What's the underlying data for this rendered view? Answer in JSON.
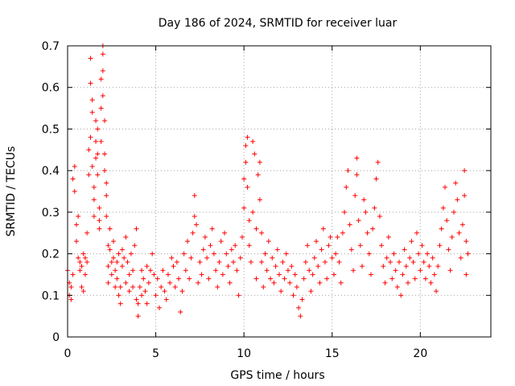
{
  "chart_data": {
    "type": "scatter",
    "title": "Day 186 of 2024, SRMTID for receiver luar",
    "xlabel": "GPS time / hours",
    "ylabel": "SRMTID / TECUs",
    "xlim": [
      0,
      24
    ],
    "ylim": [
      0,
      0.7
    ],
    "xticks": [
      "0",
      "5",
      "10",
      "15",
      "20"
    ],
    "yticks": [
      "0",
      "0.1",
      "0.2",
      "0.3",
      "0.4",
      "0.5",
      "0.6",
      "0.7"
    ],
    "grid": true,
    "marker": "+",
    "series": [
      {
        "name": "SRMTID",
        "color": "#ff0000",
        "points": [
          [
            0.0,
            0.16
          ],
          [
            0.1,
            0.13
          ],
          [
            0.1,
            0.1
          ],
          [
            0.2,
            0.09
          ],
          [
            0.2,
            0.12
          ],
          [
            0.3,
            0.15
          ],
          [
            0.3,
            0.38
          ],
          [
            0.4,
            0.41
          ],
          [
            0.4,
            0.35
          ],
          [
            0.5,
            0.27
          ],
          [
            0.5,
            0.23
          ],
          [
            0.6,
            0.19
          ],
          [
            0.6,
            0.29
          ],
          [
            0.7,
            0.18
          ],
          [
            0.7,
            0.16
          ],
          [
            0.8,
            0.12
          ],
          [
            0.8,
            0.17
          ],
          [
            0.9,
            0.2
          ],
          [
            0.9,
            0.11
          ],
          [
            1.0,
            0.15
          ],
          [
            1.0,
            0.19
          ],
          [
            1.1,
            0.18
          ],
          [
            1.1,
            0.25
          ],
          [
            1.2,
            0.39
          ],
          [
            1.2,
            0.45
          ],
          [
            1.3,
            0.48
          ],
          [
            1.3,
            0.67
          ],
          [
            1.3,
            0.61
          ],
          [
            1.4,
            0.57
          ],
          [
            1.4,
            0.54
          ],
          [
            1.4,
            0.41
          ],
          [
            1.5,
            0.33
          ],
          [
            1.5,
            0.29
          ],
          [
            1.5,
            0.36
          ],
          [
            1.6,
            0.43
          ],
          [
            1.6,
            0.52
          ],
          [
            1.6,
            0.47
          ],
          [
            1.7,
            0.5
          ],
          [
            1.7,
            0.44
          ],
          [
            1.7,
            0.39
          ],
          [
            1.8,
            0.28
          ],
          [
            1.8,
            0.31
          ],
          [
            1.8,
            0.26
          ],
          [
            1.9,
            0.47
          ],
          [
            1.9,
            0.55
          ],
          [
            1.9,
            0.62
          ],
          [
            2.0,
            0.7
          ],
          [
            2.0,
            0.68
          ],
          [
            2.0,
            0.64
          ],
          [
            2.0,
            0.58
          ],
          [
            2.1,
            0.52
          ],
          [
            2.1,
            0.44
          ],
          [
            2.1,
            0.4
          ],
          [
            2.2,
            0.34
          ],
          [
            2.2,
            0.29
          ],
          [
            2.2,
            0.37
          ],
          [
            2.3,
            0.22
          ],
          [
            2.3,
            0.17
          ],
          [
            2.3,
            0.13
          ],
          [
            2.4,
            0.26
          ],
          [
            2.4,
            0.21
          ],
          [
            2.5,
            0.18
          ],
          [
            2.5,
            0.15
          ],
          [
            2.6,
            0.19
          ],
          [
            2.6,
            0.23
          ],
          [
            2.7,
            0.16
          ],
          [
            2.7,
            0.12
          ],
          [
            2.8,
            0.18
          ],
          [
            2.8,
            0.14
          ],
          [
            2.9,
            0.2
          ],
          [
            2.9,
            0.1
          ],
          [
            3.0,
            0.12
          ],
          [
            3.0,
            0.08
          ],
          [
            3.1,
            0.17
          ],
          [
            3.1,
            0.21
          ],
          [
            3.2,
            0.19
          ],
          [
            3.3,
            0.13
          ],
          [
            3.3,
            0.24
          ],
          [
            3.4,
            0.18
          ],
          [
            3.5,
            0.15
          ],
          [
            3.5,
            0.11
          ],
          [
            3.6,
            0.2
          ],
          [
            3.7,
            0.16
          ],
          [
            3.7,
            0.12
          ],
          [
            3.8,
            0.22
          ],
          [
            3.9,
            0.26
          ],
          [
            3.9,
            0.09
          ],
          [
            4.0,
            0.05
          ],
          [
            4.0,
            0.08
          ],
          [
            4.1,
            0.12
          ],
          [
            4.2,
            0.16
          ],
          [
            4.2,
            0.1
          ],
          [
            4.3,
            0.14
          ],
          [
            4.4,
            0.11
          ],
          [
            4.5,
            0.17
          ],
          [
            4.5,
            0.08
          ],
          [
            4.6,
            0.13
          ],
          [
            4.7,
            0.16
          ],
          [
            4.8,
            0.2
          ],
          [
            4.9,
            0.15
          ],
          [
            5.0,
            0.1
          ],
          [
            5.1,
            0.14
          ],
          [
            5.2,
            0.07
          ],
          [
            5.3,
            0.12
          ],
          [
            5.4,
            0.16
          ],
          [
            5.5,
            0.11
          ],
          [
            5.6,
            0.09
          ],
          [
            5.7,
            0.15
          ],
          [
            5.8,
            0.13
          ],
          [
            5.9,
            0.19
          ],
          [
            6.0,
            0.17
          ],
          [
            6.1,
            0.12
          ],
          [
            6.2,
            0.18
          ],
          [
            6.3,
            0.14
          ],
          [
            6.4,
            0.06
          ],
          [
            6.5,
            0.11
          ],
          [
            6.6,
            0.2
          ],
          [
            6.7,
            0.16
          ],
          [
            6.8,
            0.23
          ],
          [
            6.9,
            0.14
          ],
          [
            7.0,
            0.19
          ],
          [
            7.1,
            0.25
          ],
          [
            7.2,
            0.29
          ],
          [
            7.2,
            0.34
          ],
          [
            7.3,
            0.27
          ],
          [
            7.4,
            0.13
          ],
          [
            7.5,
            0.18
          ],
          [
            7.6,
            0.15
          ],
          [
            7.7,
            0.21
          ],
          [
            7.8,
            0.24
          ],
          [
            7.9,
            0.19
          ],
          [
            8.0,
            0.14
          ],
          [
            8.1,
            0.22
          ],
          [
            8.2,
            0.26
          ],
          [
            8.3,
            0.2
          ],
          [
            8.4,
            0.16
          ],
          [
            8.5,
            0.12
          ],
          [
            8.6,
            0.18
          ],
          [
            8.7,
            0.23
          ],
          [
            8.8,
            0.15
          ],
          [
            8.9,
            0.25
          ],
          [
            9.0,
            0.2
          ],
          [
            9.1,
            0.17
          ],
          [
            9.2,
            0.13
          ],
          [
            9.3,
            0.21
          ],
          [
            9.4,
            0.18
          ],
          [
            9.5,
            0.22
          ],
          [
            9.6,
            0.16
          ],
          [
            9.7,
            0.1
          ],
          [
            9.8,
            0.19
          ],
          [
            9.9,
            0.24
          ],
          [
            10.0,
            0.31
          ],
          [
            10.0,
            0.38
          ],
          [
            10.1,
            0.46
          ],
          [
            10.1,
            0.42
          ],
          [
            10.2,
            0.48
          ],
          [
            10.2,
            0.36
          ],
          [
            10.3,
            0.28
          ],
          [
            10.3,
            0.22
          ],
          [
            10.4,
            0.18
          ],
          [
            10.5,
            0.3
          ],
          [
            10.5,
            0.47
          ],
          [
            10.6,
            0.44
          ],
          [
            10.7,
            0.26
          ],
          [
            10.7,
            0.14
          ],
          [
            10.8,
            0.39
          ],
          [
            10.9,
            0.42
          ],
          [
            10.9,
            0.33
          ],
          [
            11.0,
            0.25
          ],
          [
            11.0,
            0.18
          ],
          [
            11.1,
            0.12
          ],
          [
            11.2,
            0.2
          ],
          [
            11.3,
            0.16
          ],
          [
            11.4,
            0.23
          ],
          [
            11.5,
            0.14
          ],
          [
            11.6,
            0.19
          ],
          [
            11.7,
            0.13
          ],
          [
            11.8,
            0.17
          ],
          [
            11.9,
            0.21
          ],
          [
            12.0,
            0.15
          ],
          [
            12.1,
            0.11
          ],
          [
            12.2,
            0.18
          ],
          [
            12.3,
            0.14
          ],
          [
            12.4,
            0.2
          ],
          [
            12.5,
            0.16
          ],
          [
            12.6,
            0.13
          ],
          [
            12.7,
            0.17
          ],
          [
            12.8,
            0.1
          ],
          [
            12.9,
            0.15
          ],
          [
            13.0,
            0.12
          ],
          [
            13.1,
            0.07
          ],
          [
            13.2,
            0.05
          ],
          [
            13.3,
            0.09
          ],
          [
            13.4,
            0.14
          ],
          [
            13.5,
            0.18
          ],
          [
            13.6,
            0.22
          ],
          [
            13.7,
            0.16
          ],
          [
            13.8,
            0.11
          ],
          [
            13.9,
            0.15
          ],
          [
            14.0,
            0.19
          ],
          [
            14.1,
            0.23
          ],
          [
            14.2,
            0.17
          ],
          [
            14.3,
            0.13
          ],
          [
            14.4,
            0.21
          ],
          [
            14.5,
            0.26
          ],
          [
            14.6,
            0.18
          ],
          [
            14.7,
            0.14
          ],
          [
            14.8,
            0.22
          ],
          [
            14.9,
            0.24
          ],
          [
            15.0,
            0.19
          ],
          [
            15.1,
            0.15
          ],
          [
            15.2,
            0.2
          ],
          [
            15.3,
            0.24
          ],
          [
            15.4,
            0.18
          ],
          [
            15.5,
            0.13
          ],
          [
            15.6,
            0.25
          ],
          [
            15.7,
            0.3
          ],
          [
            15.8,
            0.36
          ],
          [
            15.9,
            0.4
          ],
          [
            16.0,
            0.27
          ],
          [
            16.1,
            0.21
          ],
          [
            16.2,
            0.16
          ],
          [
            16.3,
            0.34
          ],
          [
            16.4,
            0.43
          ],
          [
            16.4,
            0.39
          ],
          [
            16.5,
            0.28
          ],
          [
            16.6,
            0.22
          ],
          [
            16.7,
            0.17
          ],
          [
            16.8,
            0.33
          ],
          [
            16.9,
            0.3
          ],
          [
            17.0,
            0.25
          ],
          [
            17.1,
            0.2
          ],
          [
            17.2,
            0.15
          ],
          [
            17.3,
            0.26
          ],
          [
            17.4,
            0.31
          ],
          [
            17.5,
            0.38
          ],
          [
            17.6,
            0.42
          ],
          [
            17.7,
            0.29
          ],
          [
            17.8,
            0.22
          ],
          [
            17.9,
            0.17
          ],
          [
            18.0,
            0.13
          ],
          [
            18.1,
            0.19
          ],
          [
            18.2,
            0.24
          ],
          [
            18.3,
            0.18
          ],
          [
            18.4,
            0.14
          ],
          [
            18.5,
            0.2
          ],
          [
            18.6,
            0.16
          ],
          [
            18.7,
            0.12
          ],
          [
            18.8,
            0.18
          ],
          [
            18.9,
            0.1
          ],
          [
            19.0,
            0.15
          ],
          [
            19.1,
            0.21
          ],
          [
            19.2,
            0.17
          ],
          [
            19.3,
            0.13
          ],
          [
            19.4,
            0.19
          ],
          [
            19.5,
            0.23
          ],
          [
            19.6,
            0.18
          ],
          [
            19.7,
            0.14
          ],
          [
            19.8,
            0.25
          ],
          [
            19.9,
            0.2
          ],
          [
            20.0,
            0.16
          ],
          [
            20.1,
            0.22
          ],
          [
            20.2,
            0.18
          ],
          [
            20.3,
            0.14
          ],
          [
            20.4,
            0.2
          ],
          [
            20.5,
            0.17
          ],
          [
            20.6,
            0.13
          ],
          [
            20.7,
            0.19
          ],
          [
            20.8,
            0.15
          ],
          [
            20.9,
            0.11
          ],
          [
            21.0,
            0.17
          ],
          [
            21.1,
            0.22
          ],
          [
            21.2,
            0.26
          ],
          [
            21.3,
            0.31
          ],
          [
            21.4,
            0.36
          ],
          [
            21.5,
            0.28
          ],
          [
            21.6,
            0.21
          ],
          [
            21.7,
            0.16
          ],
          [
            21.8,
            0.24
          ],
          [
            21.9,
            0.3
          ],
          [
            22.0,
            0.37
          ],
          [
            22.1,
            0.33
          ],
          [
            22.2,
            0.25
          ],
          [
            22.3,
            0.19
          ],
          [
            22.4,
            0.27
          ],
          [
            22.5,
            0.34
          ],
          [
            22.5,
            0.4
          ],
          [
            22.6,
            0.23
          ],
          [
            22.6,
            0.15
          ],
          [
            22.7,
            0.2
          ]
        ]
      }
    ]
  }
}
